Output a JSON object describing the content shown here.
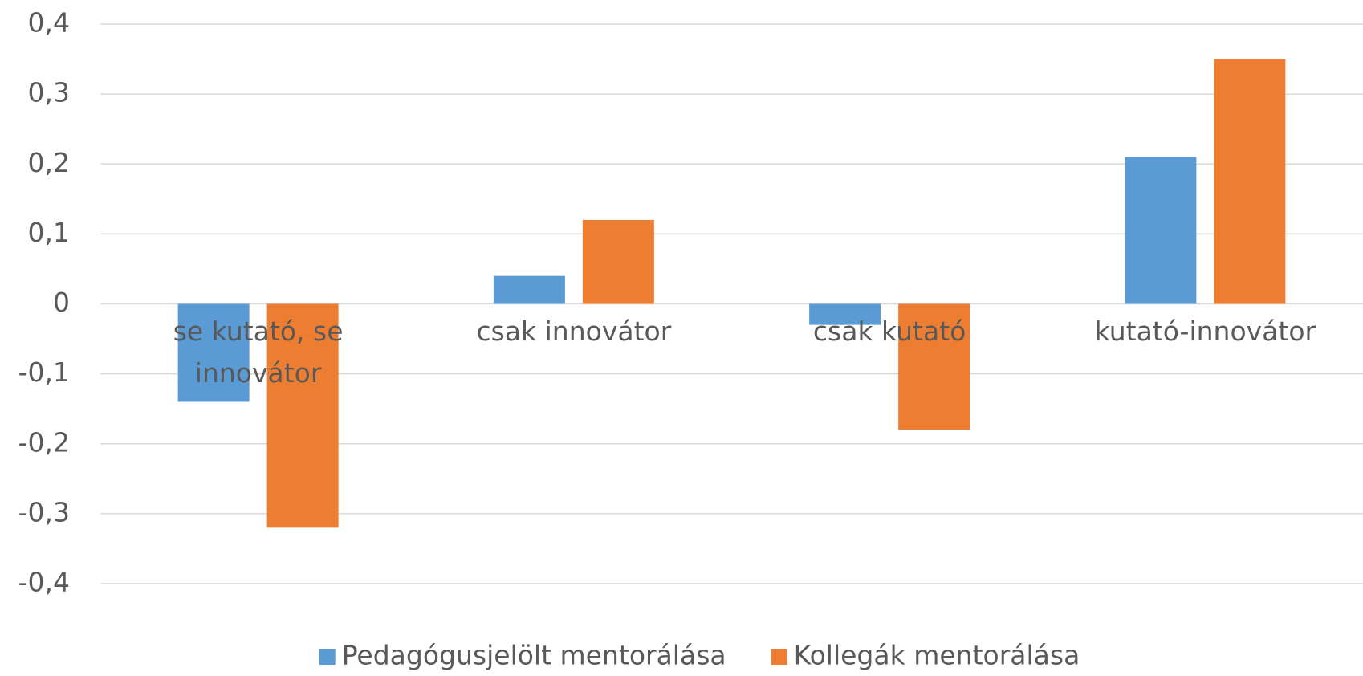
{
  "chart_data": {
    "type": "bar",
    "categories": [
      "se kutató, se innovátor",
      "csak innovátor",
      "csak kutató",
      "kutató-innovátor"
    ],
    "series": [
      {
        "name": "Pedagógusjelölt mentorálása",
        "color": "#5b9bd5",
        "values": [
          -0.14,
          0.04,
          -0.03,
          0.21
        ]
      },
      {
        "name": "Kollegák mentorálása",
        "color": "#ed7d31",
        "values": [
          -0.32,
          0.12,
          -0.18,
          0.35
        ]
      }
    ],
    "ylim": [
      -0.4,
      0.4
    ],
    "yticks": [
      {
        "value": -0.4,
        "label": "-0,4"
      },
      {
        "value": -0.3,
        "label": "-0,3"
      },
      {
        "value": -0.2,
        "label": "-0,2"
      },
      {
        "value": -0.1,
        "label": "-0,1"
      },
      0,
      {
        "value": 0.1,
        "label": "0,1"
      },
      {
        "value": 0.2,
        "label": "0,2"
      },
      {
        "value": 0.3,
        "label": "0,3"
      },
      {
        "value": 0.4,
        "label": "0,4"
      }
    ],
    "grid": true,
    "legend": "bottom"
  }
}
